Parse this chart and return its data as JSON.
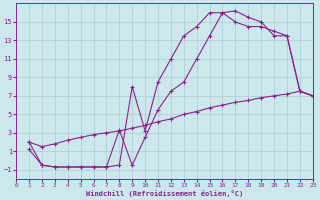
{
  "background_color": "#cce8ed",
  "grid_color": "#aaccd4",
  "line_color": "#882288",
  "marker": "+",
  "xlabel": "Windchill (Refroidissement éolien,°C)",
  "xlim": [
    0,
    23
  ],
  "ylim": [
    -2,
    17
  ],
  "xticks": [
    0,
    1,
    2,
    3,
    4,
    5,
    6,
    7,
    8,
    9,
    10,
    11,
    12,
    13,
    14,
    15,
    16,
    17,
    18,
    19,
    20,
    21,
    22,
    23
  ],
  "yticks": [
    -1,
    1,
    3,
    5,
    7,
    9,
    11,
    13,
    15
  ],
  "line1_x": [
    1,
    2,
    3,
    4,
    5,
    6,
    7,
    8,
    9,
    10,
    11,
    12,
    13,
    14,
    15,
    16,
    17,
    18,
    19,
    20,
    21,
    22,
    23
  ],
  "line1_y": [
    2.0,
    -0.5,
    -0.7,
    -0.7,
    -0.7,
    -0.7,
    -0.7,
    3.3,
    -0.5,
    2.5,
    5.5,
    7.5,
    8.5,
    11.0,
    13.5,
    16.0,
    16.2,
    15.5,
    15.0,
    13.5,
    13.5,
    7.5,
    7.0
  ],
  "line2_x": [
    1,
    2,
    3,
    4,
    5,
    6,
    7,
    8,
    9,
    10,
    11,
    12,
    13,
    14,
    15,
    16,
    17,
    18,
    19,
    20,
    21,
    22,
    23
  ],
  "line2_y": [
    2.0,
    1.5,
    1.8,
    2.2,
    2.5,
    2.8,
    3.0,
    3.2,
    3.5,
    3.8,
    4.2,
    4.5,
    5.0,
    5.3,
    5.7,
    6.0,
    6.3,
    6.5,
    6.8,
    7.0,
    7.2,
    7.5,
    7.0
  ],
  "line3_x": [
    1,
    2,
    3,
    4,
    5,
    6,
    7,
    8,
    9,
    10,
    11,
    12,
    13,
    14,
    15,
    16,
    17,
    18,
    19,
    20,
    21,
    22,
    23
  ],
  "line3_y": [
    1.2,
    -0.5,
    -0.7,
    -0.7,
    -0.7,
    -0.7,
    -0.7,
    -0.5,
    8.0,
    3.2,
    8.5,
    11.0,
    13.5,
    14.5,
    16.0,
    16.0,
    15.0,
    14.5,
    14.5,
    14.0,
    13.5,
    7.5,
    7.0
  ]
}
